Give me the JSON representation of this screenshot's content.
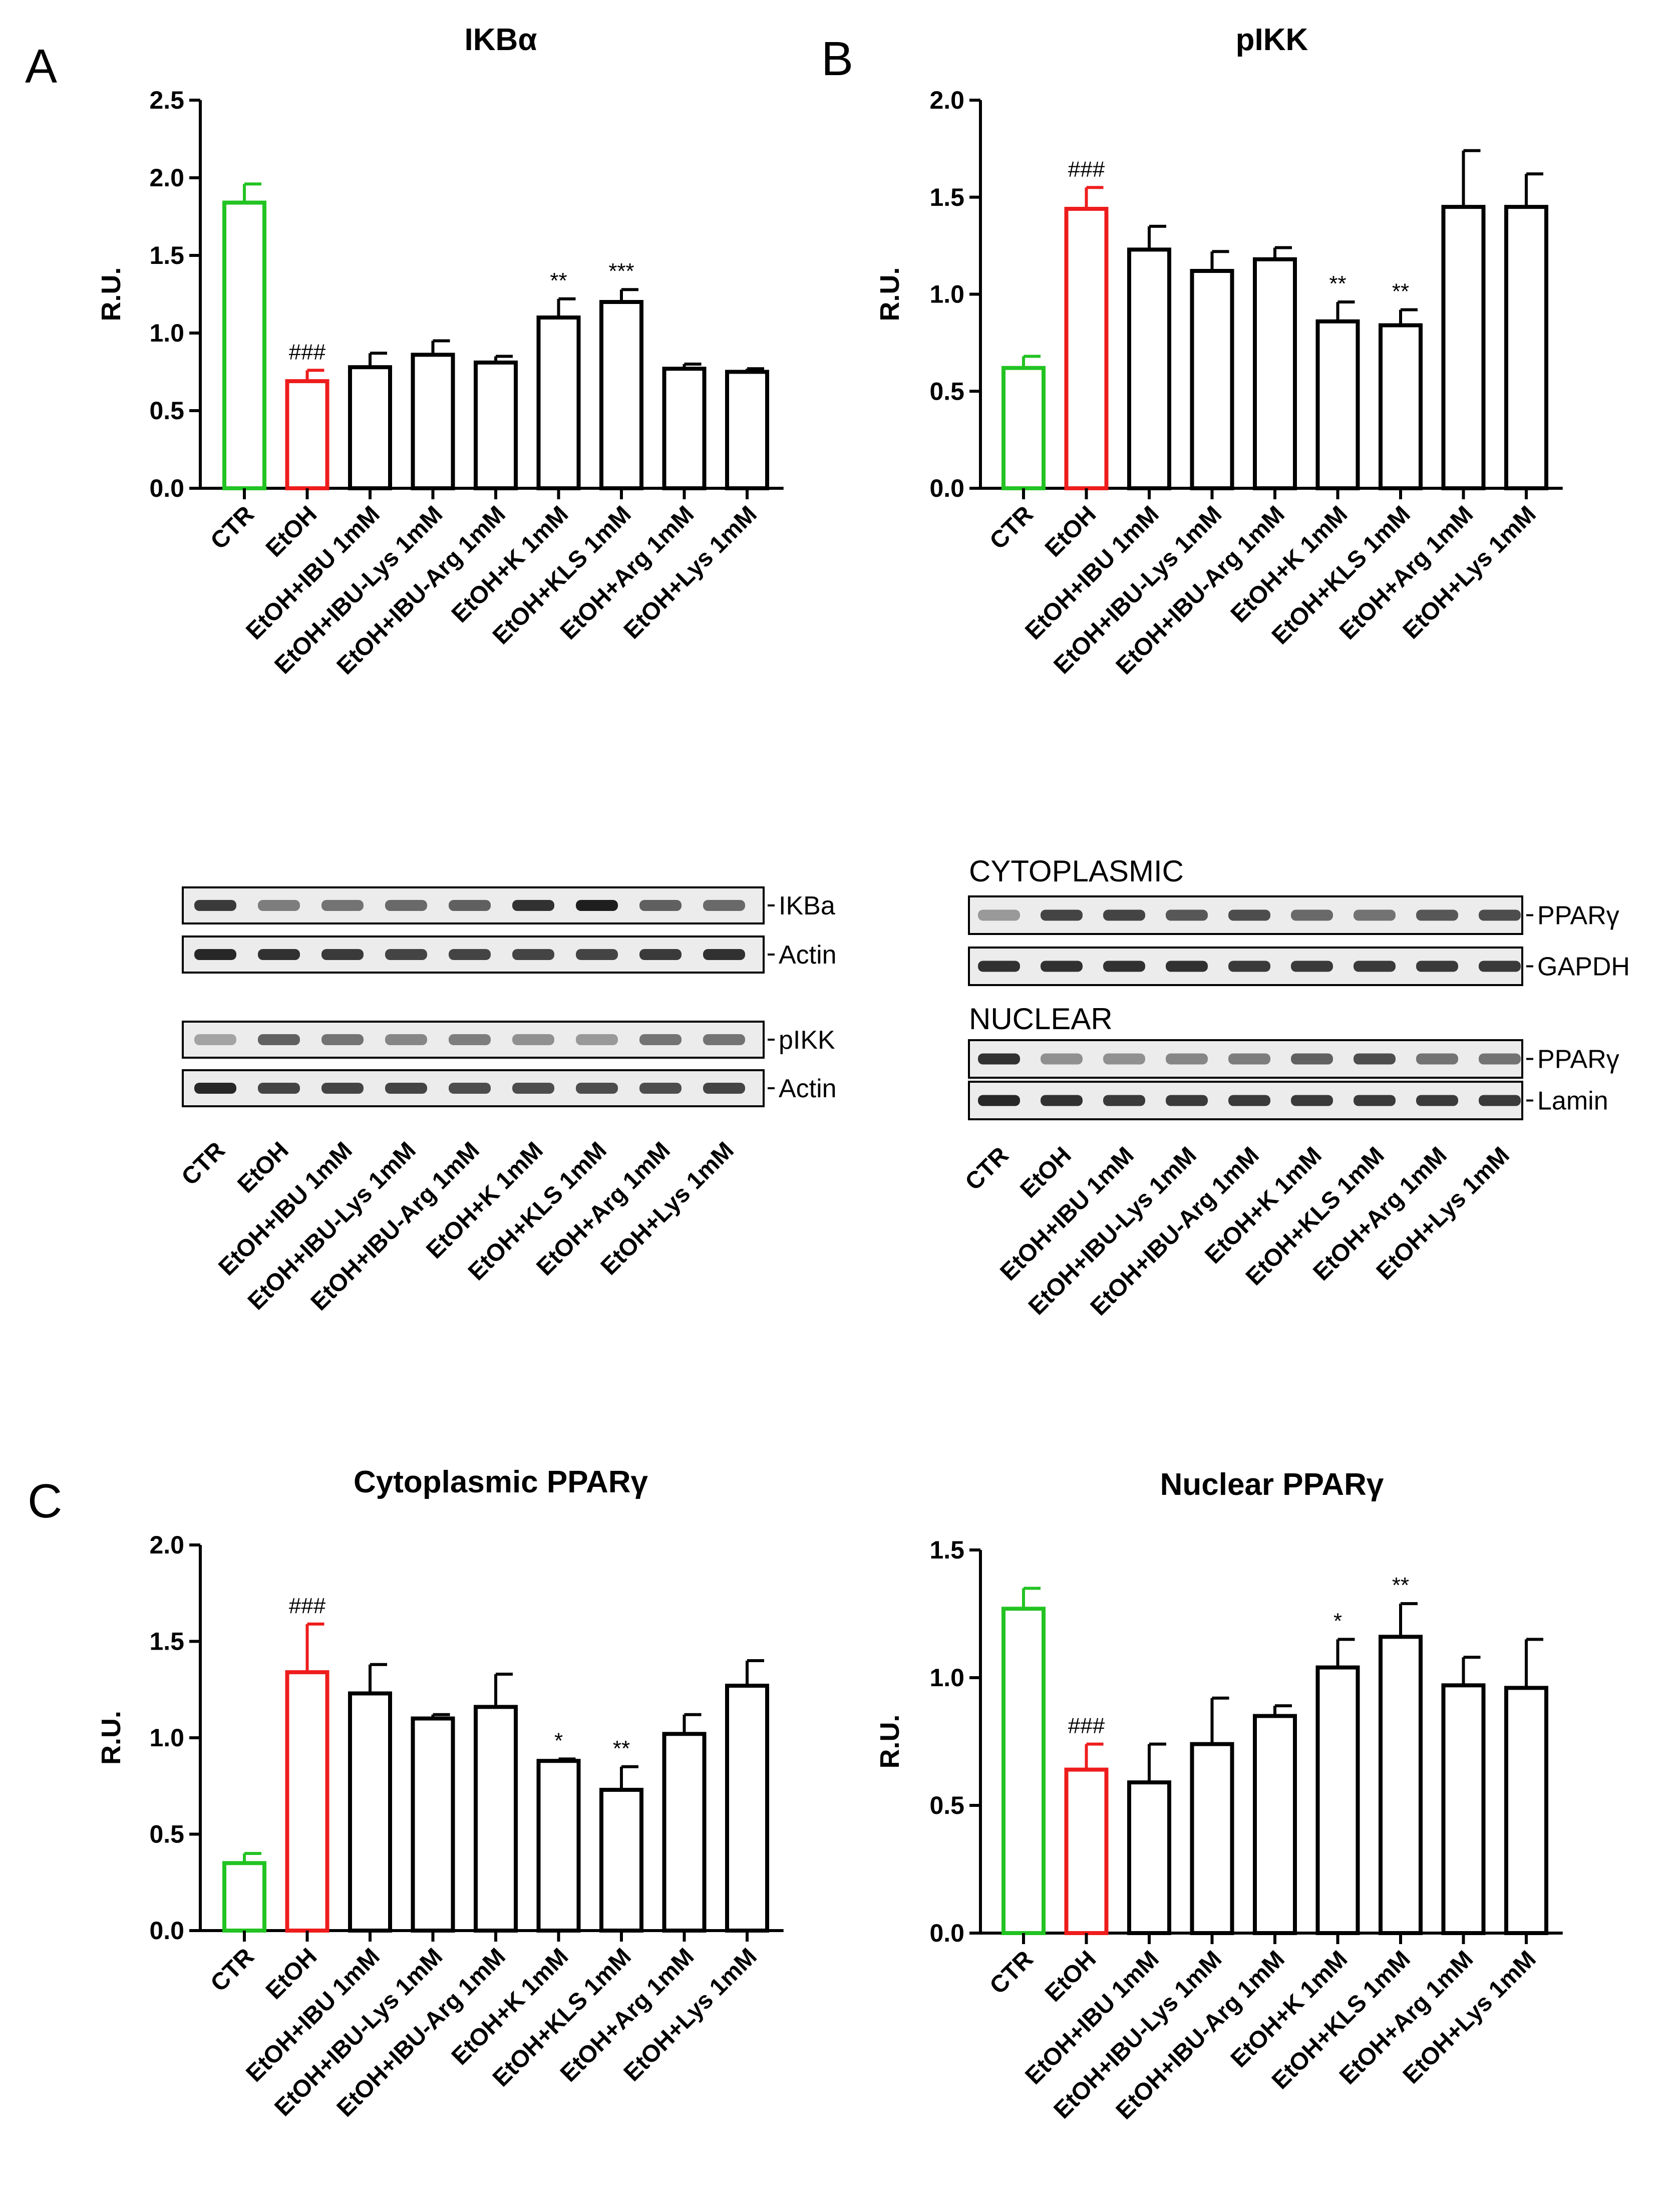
{
  "colors": {
    "ctr": "#22c322",
    "etoh": "#ee1c1c",
    "other": "#000000"
  },
  "panels": {
    "A": "A",
    "B": "B",
    "C": "C"
  },
  "chart_data": [
    {
      "id": "ikba",
      "type": "bar",
      "title": "IKBα",
      "xlabel": "",
      "ylabel": "R.U.",
      "ylim": [
        0,
        2.5
      ],
      "yticks": [
        "0.0",
        "0.5",
        "1.0",
        "1.5",
        "2.0",
        "2.5"
      ],
      "categories": [
        "CTR",
        "EtOH",
        "EtOH+IBU 1mM",
        "EtOH+IBU-Lys 1mM",
        "EtOH+IBU-Arg 1mM",
        "EtOH+K 1mM",
        "EtOH+KLS 1mM",
        "EtOH+Arg 1mM",
        "EtOH+Lys 1mM"
      ],
      "values": [
        1.84,
        0.69,
        0.78,
        0.86,
        0.81,
        1.1,
        1.2,
        0.77,
        0.75
      ],
      "errors": [
        0.12,
        0.07,
        0.09,
        0.09,
        0.04,
        0.12,
        0.08,
        0.03,
        0.02
      ],
      "annotations": [
        "",
        "###",
        "",
        "",
        "",
        "**",
        "***",
        "",
        ""
      ]
    },
    {
      "id": "pikk",
      "type": "bar",
      "title": "pIKK",
      "xlabel": "",
      "ylabel": "R.U.",
      "ylim": [
        0,
        2.0
      ],
      "yticks": [
        "0.0",
        "0.5",
        "1.0",
        "1.5",
        "2.0"
      ],
      "categories": [
        "CTR",
        "EtOH",
        "EtOH+IBU 1mM",
        "EtOH+IBU-Lys 1mM",
        "EtOH+IBU-Arg 1mM",
        "EtOH+K 1mM",
        "EtOH+KLS 1mM",
        "EtOH+Arg 1mM",
        "EtOH+Lys 1mM"
      ],
      "values": [
        0.62,
        1.44,
        1.23,
        1.12,
        1.18,
        0.86,
        0.84,
        1.45,
        1.45
      ],
      "errors": [
        0.06,
        0.11,
        0.12,
        0.1,
        0.06,
        0.1,
        0.08,
        0.29,
        0.17
      ],
      "annotations": [
        "",
        "###",
        "",
        "",
        "",
        "**",
        "**",
        "",
        ""
      ]
    },
    {
      "id": "cytppar",
      "type": "bar",
      "title": "Cytoplasmic PPARγ",
      "xlabel": "",
      "ylabel": "R.U.",
      "ylim": [
        0,
        2.0
      ],
      "yticks": [
        "0.0",
        "0.5",
        "1.0",
        "1.5",
        "2.0"
      ],
      "categories": [
        "CTR",
        "EtOH",
        "EtOH+IBU 1mM",
        "EtOH+IBU-Lys 1mM",
        "EtOH+IBU-Arg 1mM",
        "EtOH+K 1mM",
        "EtOH+KLS 1mM",
        "EtOH+Arg 1mM",
        "EtOH+Lys 1mM"
      ],
      "values": [
        0.35,
        1.34,
        1.23,
        1.1,
        1.16,
        0.88,
        0.73,
        1.02,
        1.27
      ],
      "errors": [
        0.05,
        0.25,
        0.15,
        0.02,
        0.17,
        0.01,
        0.12,
        0.1,
        0.13
      ],
      "annotations": [
        "",
        "###",
        "",
        "",
        "",
        "*",
        "**",
        "",
        ""
      ]
    },
    {
      "id": "nucppar",
      "type": "bar",
      "title": "Nuclear PPARγ",
      "xlabel": "",
      "ylabel": "R.U.",
      "ylim": [
        0,
        1.5
      ],
      "yticks": [
        "0.0",
        "0.5",
        "1.0",
        "1.5"
      ],
      "categories": [
        "CTR",
        "EtOH",
        "EtOH+IBU 1mM",
        "EtOH+IBU-Lys 1mM",
        "EtOH+IBU-Arg 1mM",
        "EtOH+K 1mM",
        "EtOH+KLS 1mM",
        "EtOH+Arg 1mM",
        "EtOH+Lys 1mM"
      ],
      "values": [
        1.27,
        0.64,
        0.59,
        0.74,
        0.85,
        1.04,
        1.16,
        0.97,
        0.96
      ],
      "errors": [
        0.08,
        0.1,
        0.15,
        0.18,
        0.04,
        0.11,
        0.13,
        0.11,
        0.19
      ],
      "annotations": [
        "",
        "###",
        "",
        "",
        "",
        "*",
        "**",
        "",
        ""
      ]
    }
  ],
  "blots": {
    "left": {
      "categories": [
        "CTR",
        "EtOH",
        "EtOH+IBU 1mM",
        "EtOH+IBU-Lys 1mM",
        "EtOH+IBU-Arg 1mM",
        "EtOH+K 1mM",
        "EtOH+KLS 1mM",
        "EtOH+Arg 1mM",
        "EtOH+Lys 1mM"
      ],
      "strips": [
        {
          "label": "IKBa",
          "intensity": [
            0.8,
            0.45,
            0.5,
            0.55,
            0.6,
            0.85,
            0.95,
            0.6,
            0.55
          ]
        },
        {
          "label": "Actin",
          "intensity": [
            0.9,
            0.85,
            0.8,
            0.75,
            0.75,
            0.75,
            0.75,
            0.8,
            0.85
          ]
        },
        {
          "label": "pIKK",
          "intensity": [
            0.25,
            0.6,
            0.5,
            0.4,
            0.45,
            0.35,
            0.3,
            0.5,
            0.5
          ]
        },
        {
          "label": "Actin",
          "intensity": [
            0.9,
            0.75,
            0.75,
            0.75,
            0.7,
            0.7,
            0.7,
            0.7,
            0.75
          ]
        }
      ]
    },
    "right": {
      "categories": [
        "CTR",
        "EtOH",
        "EtOH+IBU 1mM",
        "EtOH+IBU-Lys 1mM",
        "EtOH+IBU-Arg 1mM",
        "EtOH+K 1mM",
        "EtOH+KLS 1mM",
        "EtOH+Arg 1mM",
        "EtOH+Lys 1mM"
      ],
      "cyto_label": "CYTOPLASMIC",
      "nuc_label": "NUCLEAR",
      "strips": [
        {
          "label": "PPARγ",
          "intensity": [
            0.3,
            0.75,
            0.75,
            0.65,
            0.7,
            0.55,
            0.5,
            0.65,
            0.7
          ]
        },
        {
          "label": "GAPDH",
          "intensity": [
            0.85,
            0.85,
            0.85,
            0.85,
            0.8,
            0.8,
            0.8,
            0.8,
            0.8
          ]
        },
        {
          "label": "PPARγ",
          "intensity": [
            0.85,
            0.35,
            0.35,
            0.4,
            0.45,
            0.6,
            0.7,
            0.5,
            0.5
          ]
        },
        {
          "label": "Lamin",
          "intensity": [
            0.9,
            0.85,
            0.8,
            0.8,
            0.8,
            0.8,
            0.8,
            0.8,
            0.8
          ]
        }
      ]
    }
  }
}
